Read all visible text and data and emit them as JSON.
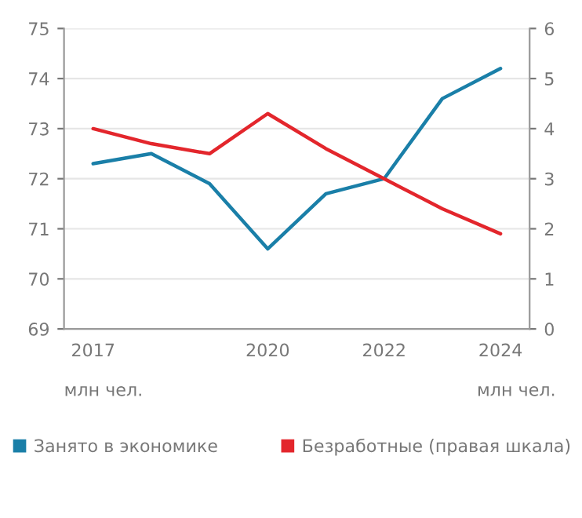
{
  "chart_data": {
    "type": "line",
    "x": [
      2017,
      2018,
      2019,
      2020,
      2021,
      2022,
      2023,
      2024
    ],
    "xlim": [
      2016.5,
      2024.5
    ],
    "xticks": [
      2017,
      2020,
      2022,
      2024
    ],
    "ylim": [
      69,
      75
    ],
    "yticks": [
      69,
      70,
      71,
      72,
      73,
      74,
      75
    ],
    "y2lim": [
      0,
      6
    ],
    "y2ticks": [
      0,
      1,
      2,
      3,
      4,
      5,
      6
    ],
    "annotations": [
      "млн чел.",
      "млн чел."
    ],
    "grid": "y",
    "legend": "bottom",
    "series": [
      {
        "name": "Занято в экономике",
        "color": "#1a7fa8",
        "values": [
          72.3,
          72.5,
          71.9,
          70.6,
          71.7,
          72.0,
          73.6,
          74.2
        ]
      },
      {
        "name": "Безработные (правая шкала)",
        "color": "#e3262c",
        "axis": "y2",
        "values": [
          4.0,
          3.7,
          3.5,
          4.3,
          3.6,
          3.0,
          2.4,
          1.9
        ]
      }
    ]
  }
}
